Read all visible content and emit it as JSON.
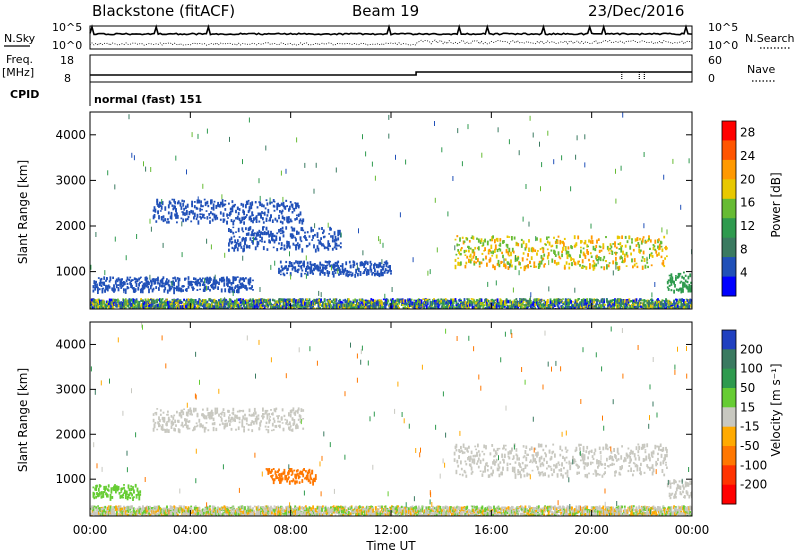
{
  "header": {
    "site": "Blackstone (fitACF)",
    "beam": "Beam 19",
    "date": "23/Dec/2016"
  },
  "top_panels": {
    "noise": {
      "left_label": "N.Sky",
      "right_label": "N.Search",
      "left_ticks": [
        "10^5",
        "10^0"
      ],
      "right_ticks": [
        "10^5",
        "10^0"
      ]
    },
    "freq": {
      "left_label": "Freq.",
      "left_unit": "[MHz]",
      "right_label": "Nave",
      "left_ticks": [
        "18",
        "8"
      ],
      "right_ticks": [
        "60",
        "0"
      ]
    },
    "cpid": {
      "label": "CPID",
      "value": "normal (fast) 151"
    }
  },
  "colors": {
    "power_scale": [
      "#0000ff",
      "#2050b8",
      "#3a7a60",
      "#2e9a4e",
      "#66bb33",
      "#e8c800",
      "#ff9900",
      "#ff5500",
      "#ff0000"
    ],
    "velocity_scale": [
      "#2040c0",
      "#3a7a60",
      "#2e9a4e",
      "#66cc33",
      "#c8c8c0",
      "#ffaa00",
      "#ff7700",
      "#ff3300",
      "#ff0000"
    ]
  },
  "chart_data": [
    {
      "type": "heatmap",
      "name": "power",
      "xlabel": "",
      "ylabel": "Slant Range [km]",
      "x_ticks": [
        "00:00",
        "04:00",
        "08:00",
        "12:00",
        "16:00",
        "20:00",
        "00:00"
      ],
      "xlim_hours": [
        0,
        24
      ],
      "y_ticks": [
        1000,
        2000,
        3000,
        4000
      ],
      "ylim_km": [
        180,
        4500
      ],
      "colorbar": {
        "label": "Power [dB]",
        "ticks": [
          4,
          8,
          12,
          16,
          20,
          24,
          28
        ],
        "range": [
          0,
          30
        ]
      },
      "echo_regions": [
        {
          "t": [
            0.0,
            24.0
          ],
          "km": [
            200,
            420
          ],
          "level": "mixed"
        },
        {
          "t": [
            0.1,
            6.5
          ],
          "km": [
            600,
            900
          ],
          "level": 4
        },
        {
          "t": [
            2.5,
            8.5
          ],
          "km": [
            2100,
            2600
          ],
          "level": 4
        },
        {
          "t": [
            5.5,
            10.0
          ],
          "km": [
            1500,
            2000
          ],
          "level": 4
        },
        {
          "t": [
            7.5,
            12.0
          ],
          "km": [
            950,
            1250
          ],
          "level": 4
        },
        {
          "t": [
            14.5,
            23.0
          ],
          "km": [
            1100,
            1800
          ],
          "level": 20
        },
        {
          "t": [
            23.0,
            24.0
          ],
          "km": [
            600,
            1000
          ],
          "level": 12
        }
      ]
    },
    {
      "type": "heatmap",
      "name": "velocity",
      "xlabel": "Time UT",
      "ylabel": "Slant Range [km]",
      "x_ticks": [
        "00:00",
        "04:00",
        "08:00",
        "12:00",
        "16:00",
        "20:00",
        "00:00"
      ],
      "xlim_hours": [
        0,
        24
      ],
      "y_ticks": [
        1000,
        2000,
        3000,
        4000
      ],
      "ylim_km": [
        180,
        4500
      ],
      "colorbar": {
        "label": "Velocity [m s⁻¹]",
        "ticks": [
          200,
          100,
          50,
          15,
          -15,
          -50,
          -100,
          -200
        ],
        "range": [
          -250,
          250
        ]
      },
      "echo_regions": [
        {
          "t": [
            0.0,
            24.0
          ],
          "km": [
            200,
            420
          ],
          "level": "mixed"
        },
        {
          "t": [
            0.1,
            2.0
          ],
          "km": [
            600,
            900
          ],
          "level": 30
        },
        {
          "t": [
            2.5,
            8.5
          ],
          "km": [
            2100,
            2600
          ],
          "level": 0
        },
        {
          "t": [
            7.0,
            9.0
          ],
          "km": [
            950,
            1250
          ],
          "level": -50
        },
        {
          "t": [
            14.5,
            23.0
          ],
          "km": [
            1100,
            1800
          ],
          "level": 0
        },
        {
          "t": [
            23.0,
            24.0
          ],
          "km": [
            600,
            1000
          ],
          "level": 0
        }
      ]
    }
  ]
}
